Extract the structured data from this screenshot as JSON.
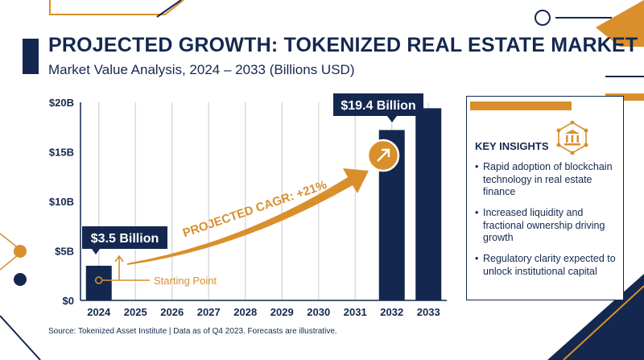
{
  "header": {
    "title": "PROJECTED GROWTH: TOKENIZED REAL ESTATE MARKET",
    "subtitle": "Market Value Analysis, 2024 – 2033 (Billions USD)"
  },
  "chart_data": {
    "type": "bar",
    "categories": [
      "2024",
      "2025",
      "2026",
      "2027",
      "2028",
      "2029",
      "2030",
      "2031",
      "2032",
      "2033"
    ],
    "series": [
      {
        "values": [
          3.5,
          null,
          null,
          null,
          null,
          null,
          null,
          null,
          17.2,
          19.4
        ]
      }
    ],
    "ylim": [
      0,
      20
    ],
    "yticks": [
      "$0",
      "$5B",
      "$10B",
      "$15B",
      "$20B"
    ],
    "grid": "vertical",
    "callouts": {
      "start_value": "$3.5 Billion",
      "end_value": "$19.4 Billion",
      "start_label": "Starting Point",
      "trend_label": "PROJECTED CAGR: +21%"
    },
    "colors": {
      "bar": "#14284f",
      "accent": "#d98f2b",
      "text": "#14284f"
    }
  },
  "insights": {
    "title": "KEY INSIGHTS",
    "icon": "building-network-icon",
    "items": [
      "Rapid adoption of blockchain technology in real estate finance",
      "Increased liquidity and fractional ownership driving growth",
      "Regulatory clarity expected to unlock institutional capital"
    ]
  },
  "source": "Source: Tokenized Asset Institute | Data as of Q4 2023. Forecasts are illustrative."
}
